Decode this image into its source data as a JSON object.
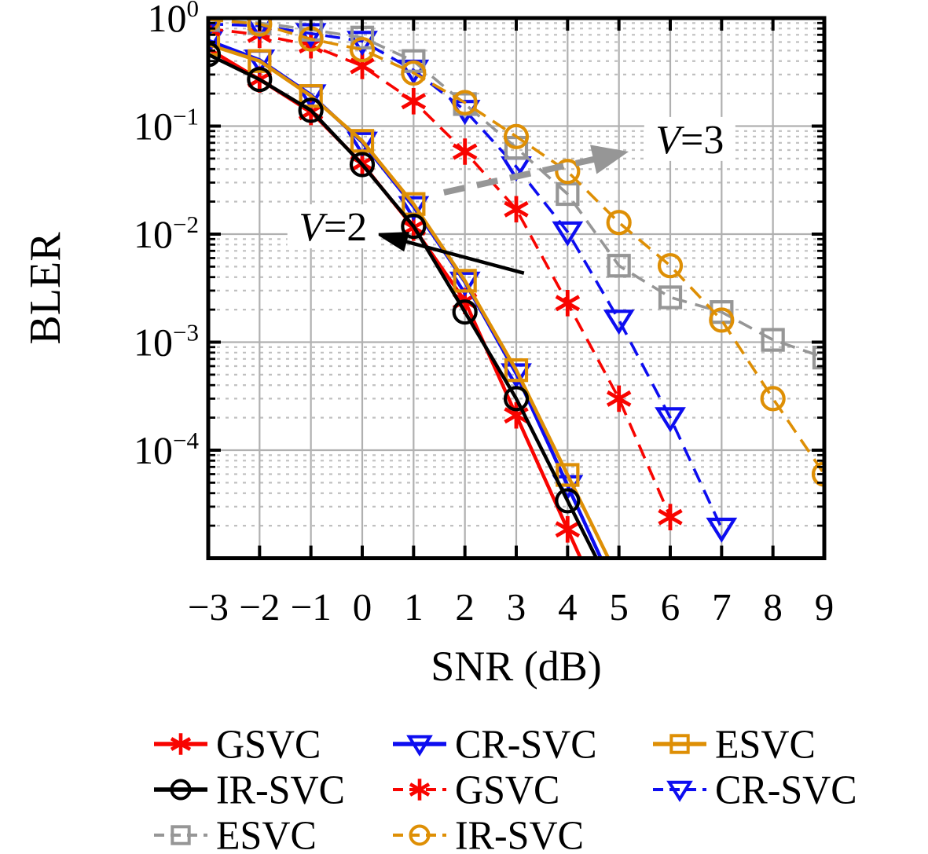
{
  "chart_data": {
    "type": "line",
    "title": "",
    "xlabel": "SNR (dB)",
    "ylabel": "BLER",
    "xlim": [
      -3,
      9
    ],
    "ylim": [
      1e-05,
      1
    ],
    "y_scale": "log",
    "grid": "major solid gray; log minor dotted horizontal",
    "legend_position": "below",
    "colors": {
      "red": "#f80400",
      "blue": "#0d0df0",
      "orange": "#de8f05",
      "gray": "#969696",
      "black": "#000000",
      "grid_major": "#b0b0b0",
      "grid_minor": "#c0c0c0",
      "frame": "#000000"
    },
    "x_ticks": [
      {
        "value": -3,
        "label": "−3"
      },
      {
        "value": -2,
        "label": "−2"
      },
      {
        "value": -1,
        "label": "−1"
      },
      {
        "value": 0,
        "label": "0"
      },
      {
        "value": 1,
        "label": "1"
      },
      {
        "value": 2,
        "label": "2"
      },
      {
        "value": 3,
        "label": "3"
      },
      {
        "value": 4,
        "label": "4"
      },
      {
        "value": 5,
        "label": "5"
      },
      {
        "value": 6,
        "label": "6"
      },
      {
        "value": 7,
        "label": "7"
      },
      {
        "value": 8,
        "label": "8"
      },
      {
        "value": 9,
        "label": "9"
      }
    ],
    "y_ticks": [
      {
        "exponent": 0,
        "base": "10",
        "sup": "0"
      },
      {
        "exponent": -1,
        "base": "10",
        "sup": "−1"
      },
      {
        "exponent": -2,
        "base": "10",
        "sup": "−2"
      },
      {
        "exponent": -3,
        "base": "10",
        "sup": "−3"
      },
      {
        "exponent": -4,
        "base": "10",
        "sup": "−4"
      }
    ],
    "series": [
      {
        "name": "GSVC",
        "group": "V=2",
        "color": "red",
        "marker": "star",
        "line": "solid",
        "extend_line_to_bottom": true,
        "x": [
          -3,
          -2,
          -1,
          0,
          1,
          2,
          3,
          4
        ],
        "y": [
          0.52,
          0.27,
          0.135,
          0.045,
          0.0115,
          0.0024,
          0.00021,
          1.85e-05
        ]
      },
      {
        "name": "CR-SVC",
        "group": "V=2",
        "color": "blue",
        "marker": "triangle-down",
        "line": "solid",
        "extend_line_to_bottom": true,
        "x": [
          -3,
          -2,
          -1,
          0,
          1,
          2,
          3,
          4
        ],
        "y": [
          0.62,
          0.41,
          0.195,
          0.071,
          0.018,
          0.0036,
          0.00051,
          4.7e-05
        ]
      },
      {
        "name": "ESVC",
        "group": "V=2",
        "color": "orange",
        "marker": "square",
        "line": "solid",
        "extend_line_to_bottom": true,
        "x": [
          -3,
          -2,
          -1,
          0,
          1,
          2,
          3,
          4
        ],
        "y": [
          0.57,
          0.4,
          0.19,
          0.073,
          0.019,
          0.0037,
          0.00055,
          5.9e-05
        ]
      },
      {
        "name": "IR-SVC",
        "group": "V=2",
        "color": "black",
        "marker": "circle",
        "line": "solid",
        "extend_line_to_bottom": true,
        "x": [
          -3,
          -2,
          -1,
          0,
          1,
          2,
          3,
          4
        ],
        "y": [
          0.46,
          0.27,
          0.14,
          0.044,
          0.0118,
          0.0019,
          0.0003,
          3.4e-05
        ]
      },
      {
        "name": "GSVC",
        "group": "V=3",
        "color": "red",
        "marker": "star",
        "line": "dashed",
        "extend_line_to_bottom": false,
        "x": [
          -3,
          -2,
          -1,
          0,
          1,
          2,
          3,
          4,
          5,
          6
        ],
        "y": [
          0.8,
          0.7,
          0.56,
          0.36,
          0.17,
          0.058,
          0.017,
          0.0023,
          0.0003,
          2.4e-05
        ]
      },
      {
        "name": "CR-SVC",
        "group": "V=3",
        "color": "blue",
        "marker": "triangle-down",
        "line": "dashed",
        "extend_line_to_bottom": false,
        "x": [
          -3,
          -2,
          -1,
          0,
          1,
          2,
          3,
          4,
          5,
          6,
          7
        ],
        "y": [
          0.88,
          0.85,
          0.72,
          0.61,
          0.33,
          0.14,
          0.042,
          0.0105,
          0.0016,
          0.0002,
          1.9e-05
        ]
      },
      {
        "name": "ESVC",
        "group": "V=3",
        "color": "gray",
        "marker": "square",
        "line": "dashed",
        "extend_line_to_bottom": false,
        "x": [
          -3,
          -2,
          -1,
          0,
          1,
          2,
          3,
          4,
          5,
          6,
          7,
          8,
          9
        ],
        "y": [
          0.96,
          0.9,
          0.78,
          0.66,
          0.4,
          0.16,
          0.063,
          0.0235,
          0.0051,
          0.0026,
          0.0019,
          0.00105,
          0.00072
        ]
      },
      {
        "name": "IR-SVC",
        "group": "V=3",
        "color": "orange",
        "marker": "circle",
        "line": "dashed",
        "extend_line_to_bottom": false,
        "x": [
          -3,
          -2,
          -1,
          0,
          1,
          2,
          3,
          4,
          5,
          6,
          7,
          8,
          9
        ],
        "y": [
          0.97,
          0.88,
          0.64,
          0.51,
          0.31,
          0.165,
          0.08,
          0.038,
          0.0128,
          0.0051,
          0.0016,
          0.0003,
          6e-05
        ]
      }
    ],
    "annotations": [
      {
        "label": "V=2",
        "label_x": -0.57,
        "label_y": 0.0118,
        "arrow_tail_x": 3.15,
        "arrow_tail_y": 0.00435,
        "arrow_tip_x": 0.245,
        "arrow_tip_y": 0.0102,
        "color": "#000000",
        "dashed": false
      },
      {
        "label": "V=3",
        "label_x": 6.38,
        "label_y": 0.076,
        "arrow_tail_x": 1.59,
        "arrow_tail_y": 0.0243,
        "arrow_tip_x": 5.19,
        "arrow_tip_y": 0.058,
        "color": "#969696",
        "dashed": true
      }
    ],
    "legend": {
      "entries": [
        {
          "label": "GSVC",
          "series": 0
        },
        {
          "label": "CR-SVC",
          "series": 1
        },
        {
          "label": "ESVC",
          "series": 2
        },
        {
          "label": "IR-SVC",
          "series": 3
        },
        {
          "label": "GSVC",
          "series": 4
        },
        {
          "label": "CR-SVC",
          "series": 5
        },
        {
          "label": "ESVC",
          "series": 6
        },
        {
          "label": "IR-SVC",
          "series": 7
        }
      ]
    }
  }
}
